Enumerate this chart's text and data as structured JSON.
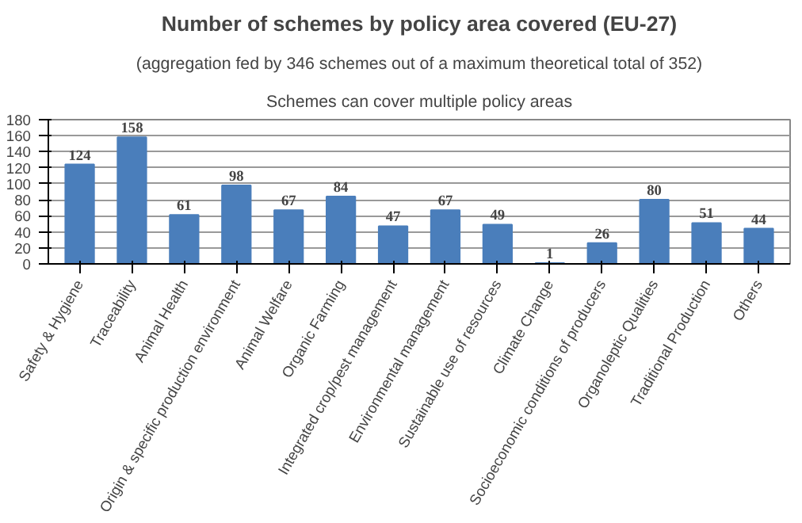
{
  "chart_data": {
    "type": "bar",
    "title": "Number of schemes by policy area covered (EU-27)",
    "subtitle": "(aggregation fed by 346 schemes out of a maximum theoretical total of 352)",
    "annotations": [
      "Schemes can cover multiple policy areas"
    ],
    "categories": [
      "Safety & Hygiene",
      "Traceability",
      "Animal Health",
      "Origin & specific production environment",
      "Animal Welfare",
      "Organic Farming",
      "Integrated crop/pest management",
      "Environmental management",
      "Sustainable use of resources",
      "Climate Change",
      "Socioeconomic conditions of producers",
      "Organoleptic Qualities",
      "Traditional Production",
      "Others"
    ],
    "values": [
      124,
      158,
      61,
      98,
      67,
      84,
      47,
      67,
      49,
      1,
      26,
      80,
      51,
      44
    ],
    "color": "#4a7ebb",
    "ylim": [
      0,
      180
    ],
    "yticks": [
      0,
      20,
      40,
      60,
      80,
      100,
      120,
      140,
      160,
      180
    ],
    "grid": "y",
    "data_labels": true
  }
}
